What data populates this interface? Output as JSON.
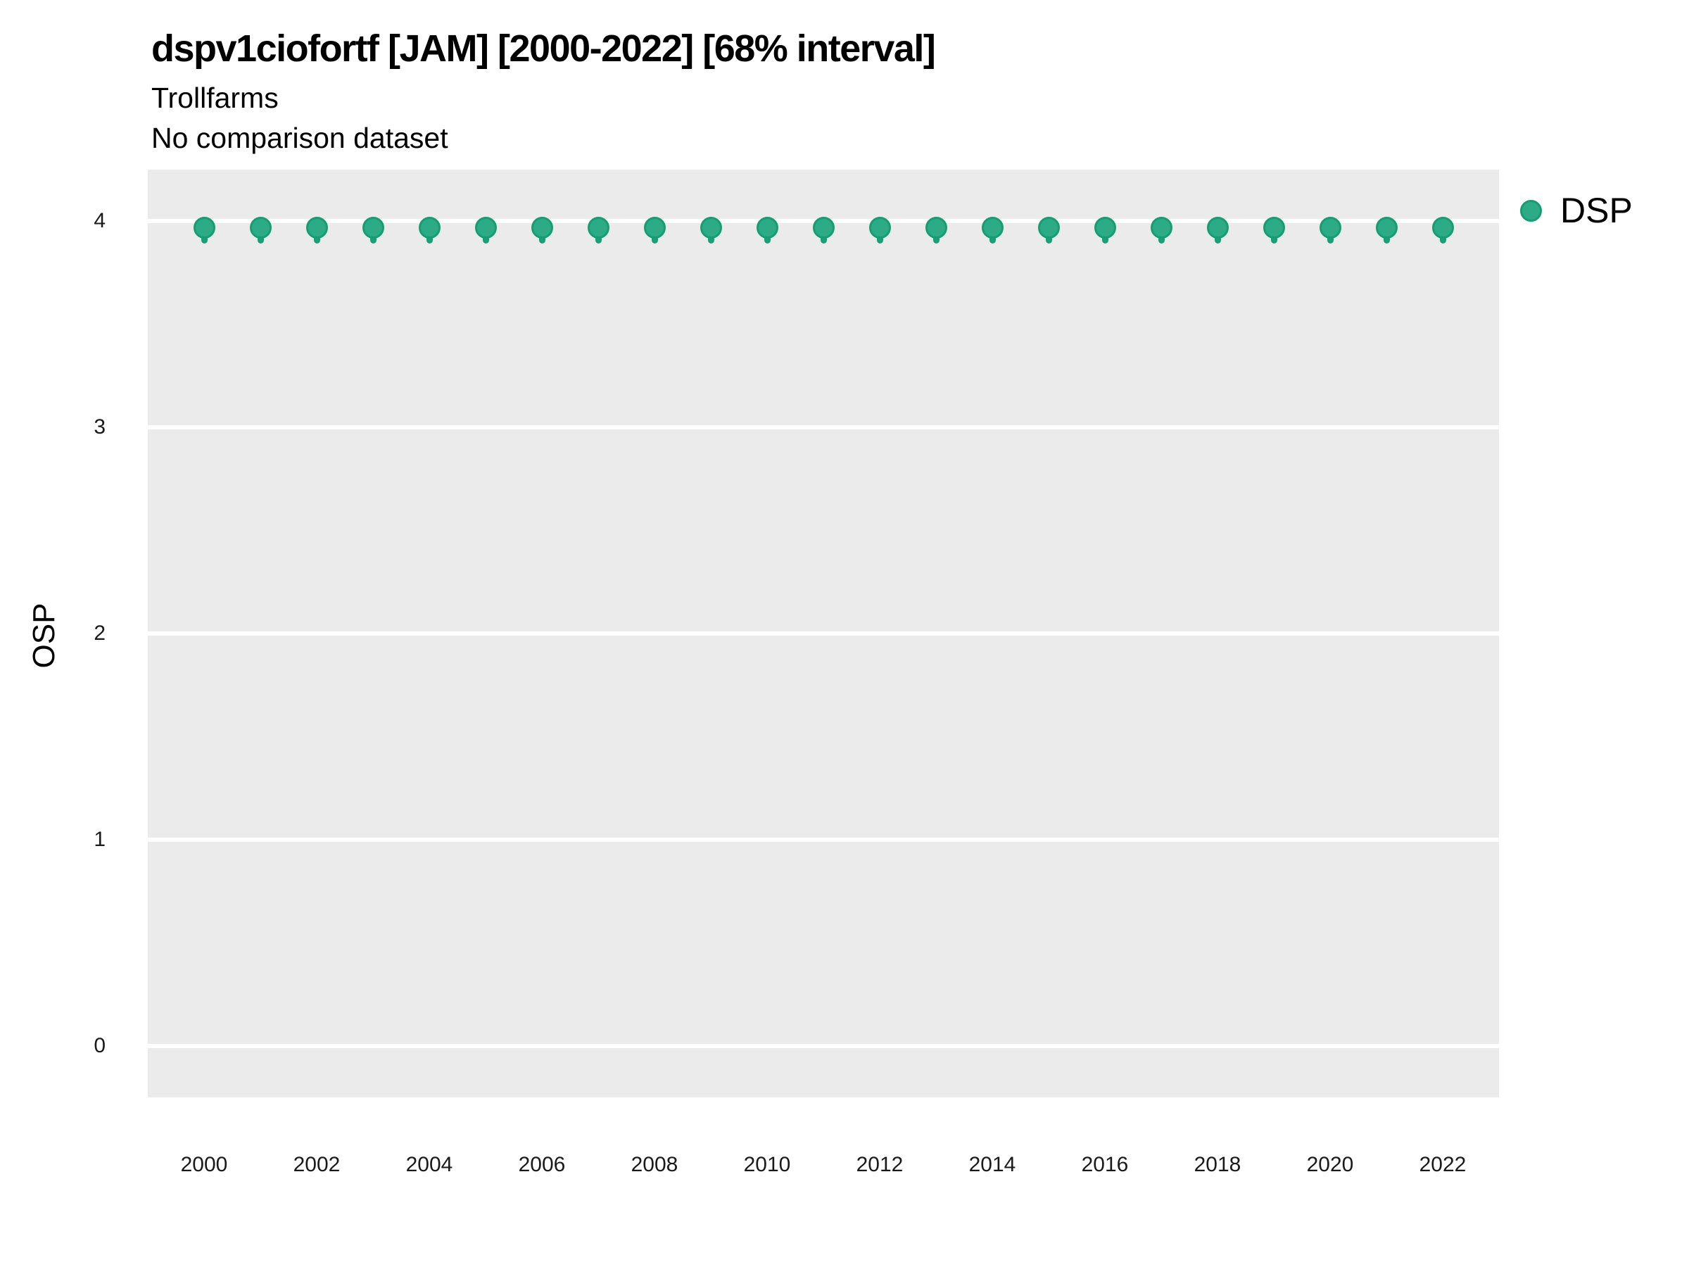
{
  "header": {
    "title": "dspv1ciofortf [JAM] [2000-2022] [68% interval]",
    "subtitle": "Trollfarms",
    "note": "No comparison dataset"
  },
  "legend": {
    "items": [
      {
        "label": "DSP",
        "swatch_fill": "#2DAB87",
        "swatch_stroke": "#169E73"
      }
    ]
  },
  "colors": {
    "panel_background": "#EBEBEB",
    "gridline": "#FFFFFF",
    "point_fill": "#2DAB87",
    "point_stroke": "#169E73",
    "interval_bar": "#1E9E77",
    "text": "#000000"
  },
  "chart_data": {
    "type": "scatter",
    "title": "dspv1ciofortf [JAM] [2000-2022] [68% interval]",
    "subtitle": "Trollfarms",
    "note": "No comparison dataset",
    "xlabel": "",
    "ylabel": "OSP",
    "legend_position": "right-top",
    "grid": "major-y-only",
    "xlim": [
      1999,
      2023
    ],
    "ylim": [
      -0.25,
      4.25
    ],
    "x_ticks": [
      2000,
      2002,
      2004,
      2006,
      2008,
      2010,
      2012,
      2014,
      2016,
      2018,
      2020,
      2022
    ],
    "y_ticks": [
      0,
      1,
      2,
      3,
      4
    ],
    "x": [
      2000,
      2001,
      2002,
      2003,
      2004,
      2005,
      2006,
      2007,
      2008,
      2009,
      2010,
      2011,
      2012,
      2013,
      2014,
      2015,
      2016,
      2017,
      2018,
      2019,
      2020,
      2021,
      2022
    ],
    "series": [
      {
        "name": "DSP",
        "interval_level": "68%",
        "values": [
          3.97,
          3.97,
          3.97,
          3.97,
          3.97,
          3.97,
          3.97,
          3.97,
          3.97,
          3.97,
          3.97,
          3.97,
          3.97,
          3.97,
          3.97,
          3.97,
          3.97,
          3.97,
          3.97,
          3.97,
          3.97,
          3.97,
          3.97
        ],
        "interval_low": [
          3.89,
          3.89,
          3.89,
          3.89,
          3.89,
          3.89,
          3.89,
          3.89,
          3.89,
          3.89,
          3.89,
          3.89,
          3.89,
          3.89,
          3.89,
          3.89,
          3.89,
          3.89,
          3.89,
          3.89,
          3.89,
          3.89,
          3.89
        ],
        "interval_high": [
          4.02,
          4.02,
          4.02,
          4.02,
          4.02,
          4.02,
          4.02,
          4.02,
          4.02,
          4.02,
          4.02,
          4.02,
          4.02,
          4.02,
          4.02,
          4.02,
          4.02,
          4.02,
          4.02,
          4.02,
          4.02,
          4.02,
          4.02
        ]
      }
    ]
  }
}
